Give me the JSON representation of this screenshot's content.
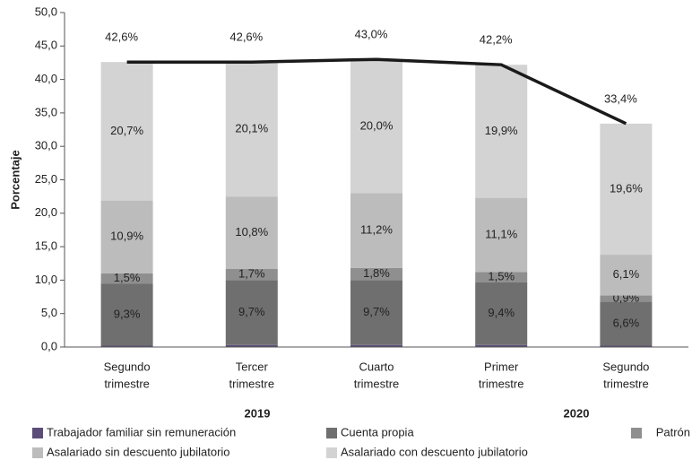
{
  "chart_data": {
    "type": "stacked_bar_line",
    "y_label": "Porcentaje",
    "categories": [
      [
        "Segundo",
        "trimestre"
      ],
      [
        "Tercer",
        "trimestre"
      ],
      [
        "Cuarto",
        "trimestre"
      ],
      [
        "Primer",
        "trimestre"
      ],
      [
        "Segundo",
        "trimestre"
      ]
    ],
    "groups": [
      "2019",
      "2020"
    ],
    "ylim": [
      0,
      50
    ],
    "yticks": [
      {
        "value": 0,
        "label": "0,0"
      },
      {
        "value": 5,
        "label": "5,0"
      },
      {
        "value": 10,
        "label": "10,0"
      },
      {
        "value": 15,
        "label": "15,0"
      },
      {
        "value": 20,
        "label": "20,0"
      },
      {
        "value": 25,
        "label": "25,0"
      },
      {
        "value": 30,
        "label": "30,0"
      },
      {
        "value": 35,
        "label": "35,0"
      },
      {
        "value": 40,
        "label": "40,0"
      },
      {
        "value": 45,
        "label": "45,0"
      },
      {
        "value": 50,
        "label": "50,0"
      }
    ],
    "series": [
      {
        "name": "Trabajador familiar sin remuneración",
        "color": "#5b4d78",
        "values": [
          0.2,
          0.3,
          0.3,
          0.3,
          0.2
        ]
      },
      {
        "name": "Cuenta propia",
        "color": "#6f6f6f",
        "values": [
          9.3,
          9.7,
          9.7,
          9.4,
          6.6
        ],
        "value_labels": [
          "9,3%",
          "9,7%",
          "9,7%",
          "9,4%",
          "6,6%"
        ]
      },
      {
        "name": "Patrón",
        "color": "#8f8f8f",
        "values": [
          1.5,
          1.7,
          1.8,
          1.5,
          0.9
        ],
        "value_labels": [
          "1,5%",
          "1,7%",
          "1,8%",
          "1,5%",
          "0,9%"
        ]
      },
      {
        "name": "Asalariado sin descuento jubilatorio",
        "color": "#bcbcbc",
        "values": [
          10.9,
          10.8,
          11.2,
          11.1,
          6.1
        ],
        "value_labels": [
          "10,9%",
          "10,8%",
          "11,2%",
          "11,1%",
          "6,1%"
        ]
      },
      {
        "name": "Asalariado con descuento jubilatorio",
        "color": "#d3d3d3",
        "values": [
          20.7,
          20.1,
          20.0,
          19.9,
          19.6
        ],
        "value_labels": [
          "20,7%",
          "20,1%",
          "20,0%",
          "19,9%",
          "19,6%"
        ]
      }
    ],
    "line": {
      "color": "#1a1a1a",
      "values": [
        42.6,
        42.6,
        43.0,
        42.2,
        33.4
      ],
      "value_labels": [
        "42,6%",
        "42,6%",
        "43,0%",
        "42,2%",
        "33,4%"
      ]
    }
  }
}
